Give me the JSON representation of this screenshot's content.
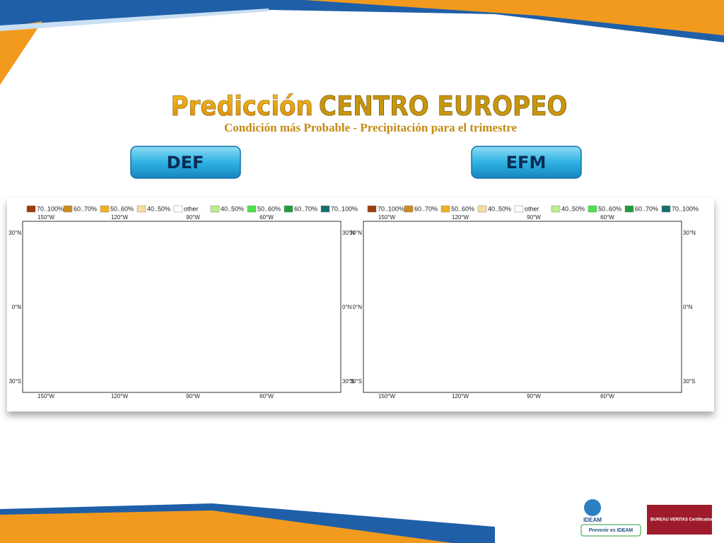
{
  "title": {
    "part1": "Predicción",
    "part2": "CENTRO EUROPEO"
  },
  "subtitle": "Condición más Probable - Precipitación para el trimestre",
  "maps": [
    {
      "button": "DEF",
      "legend": [
        {
          "label": "70..100%",
          "color": "#9c3d0a"
        },
        {
          "label": "60..70%",
          "color": "#cf8a1e"
        },
        {
          "label": "50..60%",
          "color": "#f2b21d"
        },
        {
          "label": "40..50%",
          "color": "#f7dca0"
        },
        {
          "label": "other",
          "color": "#ffffff"
        },
        {
          "label": "40..50%",
          "color": "#b9ef8b"
        },
        {
          "label": "50..60%",
          "color": "#4be24a"
        },
        {
          "label": "60..70%",
          "color": "#1f9c3c"
        },
        {
          "label": "70..100%",
          "color": "#136f6c"
        }
      ],
      "lon_labels": [
        "150°W",
        "120°W",
        "90°W",
        "60°W"
      ],
      "lat_labels": [
        "30°N",
        "0°N",
        "30°S"
      ]
    },
    {
      "button": "EFM",
      "legend": [
        {
          "label": "70..100%",
          "color": "#9c3d0a"
        },
        {
          "label": "60..70%",
          "color": "#cf8a1e"
        },
        {
          "label": "50..60%",
          "color": "#f2b21d"
        },
        {
          "label": "40..50%",
          "color": "#f7dca0"
        },
        {
          "label": "other",
          "color": "#ffffff"
        },
        {
          "label": "40..50%",
          "color": "#b9ef8b"
        },
        {
          "label": "50..60%",
          "color": "#4be24a"
        },
        {
          "label": "60..70%",
          "color": "#1f9c3c"
        },
        {
          "label": "70..100%",
          "color": "#136f6c"
        }
      ],
      "lon_labels": [
        "150°W",
        "120°W",
        "90°W",
        "60°W"
      ],
      "lat_labels": [
        "30°N",
        "0°N",
        "30°S"
      ]
    }
  ],
  "logos": {
    "ideam": "IDEAM",
    "prevenir": "Prevenir es IDEAM",
    "bureau": "BUREAU VERITAS Certification"
  }
}
